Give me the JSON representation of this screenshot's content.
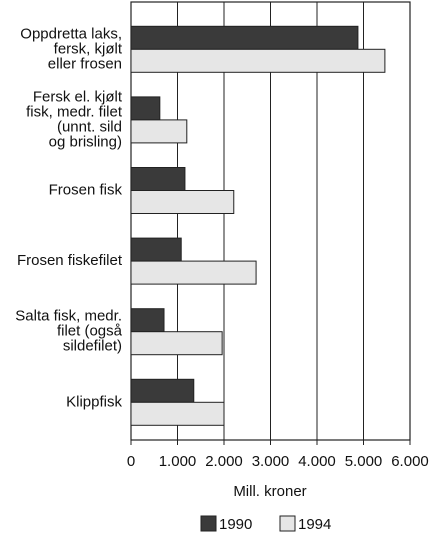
{
  "chart_data": {
    "type": "hbar",
    "categories": [
      "Oppdretta laks,\nfersk, kjølt\neller frosen",
      "Fersk el. kjølt\nfisk, medr. filet\n(unnt. sild\nog brisling)",
      "Frosen fisk",
      "Frosen fiskefilet",
      "Salta fisk, medr.\nfilet (også\nsildefilet)",
      "Klippfisk"
    ],
    "series": [
      {
        "name": "1990",
        "color": "#3a3a3a",
        "values": [
          4880,
          620,
          1160,
          1080,
          710,
          1350
        ]
      },
      {
        "name": "1994",
        "color": "#e6e6e6",
        "values": [
          5460,
          1200,
          2210,
          2690,
          1960,
          2000
        ]
      }
    ],
    "xlabel": "Mill. kroner",
    "xlim": [
      0,
      6000
    ],
    "xticks": [
      0,
      {
        "value": 1000,
        "label": "1.000"
      },
      {
        "value": 2000,
        "label": "2.000"
      },
      {
        "value": 3000,
        "label": "3.000"
      },
      {
        "value": 4000,
        "label": "4.000"
      },
      {
        "value": 5000,
        "label": "5.000"
      },
      {
        "value": 6000,
        "label": "6.000"
      }
    ],
    "grid": true
  }
}
